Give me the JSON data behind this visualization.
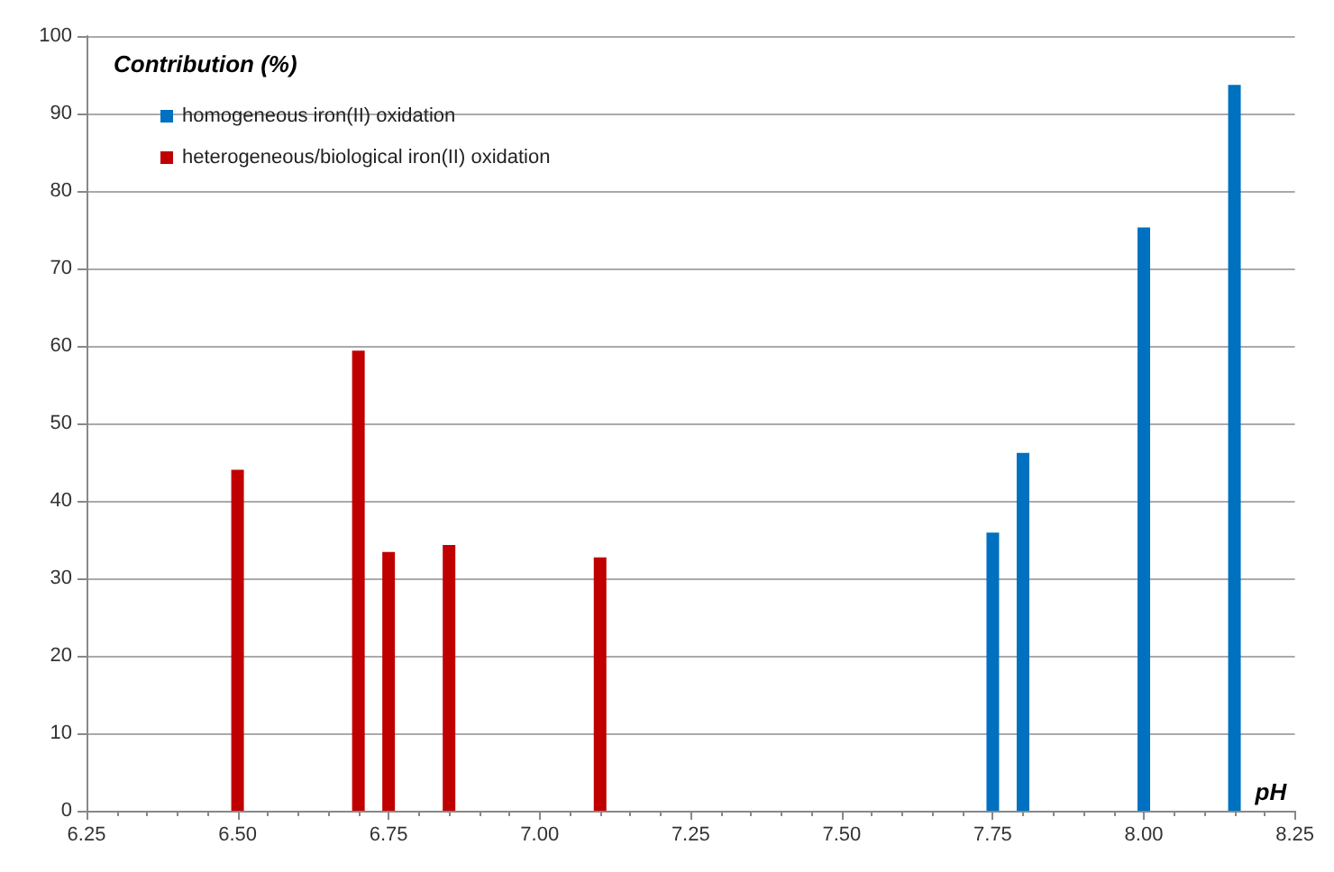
{
  "chart_data": {
    "type": "bar",
    "ylabel": "Contribution (%)",
    "xlabel": "pH",
    "xlim": [
      6.25,
      8.25
    ],
    "xticks": [
      {
        "value": 6.25,
        "label": "6.25"
      },
      {
        "value": 6.5,
        "label": "6.50"
      },
      {
        "value": 6.75,
        "label": "6.75"
      },
      {
        "value": 7,
        "label": "7.00"
      },
      {
        "value": 7.25,
        "label": "7.25"
      },
      {
        "value": 7.5,
        "label": "7.50"
      },
      {
        "value": 7.75,
        "label": "7.75"
      },
      {
        "value": 8,
        "label": "8.00"
      },
      {
        "value": 8.25,
        "label": "8.25"
      }
    ],
    "ylim": [
      0,
      100
    ],
    "yticks": [
      0,
      10,
      20,
      30,
      40,
      50,
      60,
      70,
      80,
      90,
      100
    ],
    "grid": "y",
    "legend": "top left",
    "series": [
      {
        "name": "homogeneous iron(II) oxidation",
        "color": "#0070c0",
        "x": [
          7.75,
          7.8,
          8.0,
          8.15
        ],
        "values": [
          35.9,
          46.2,
          75.3,
          93.7
        ]
      },
      {
        "name": "heterogeneous/biological iron(II) oxidation",
        "color": "#c00000",
        "x": [
          6.5,
          6.7,
          6.75,
          6.85,
          7.1
        ],
        "values": [
          44,
          59.4,
          33.4,
          34.3,
          32.7
        ]
      }
    ]
  }
}
